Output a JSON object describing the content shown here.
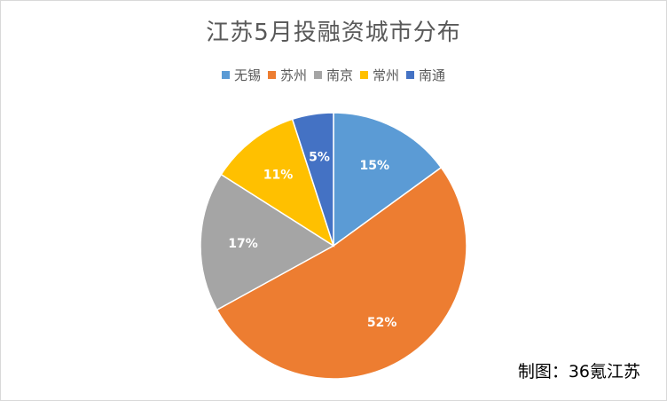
{
  "chart_data": {
    "type": "pie",
    "title": "江苏5月投融资城市分布",
    "categories": [
      "无锡",
      "苏州",
      "南京",
      "常州",
      "南通"
    ],
    "values": [
      15,
      52,
      17,
      11,
      5
    ],
    "labels": [
      "15%",
      "52%",
      "17%",
      "11%",
      "5%"
    ],
    "colors": [
      "#5b9bd5",
      "#ed7d31",
      "#a5a5a5",
      "#ffc000",
      "#4472c4"
    ],
    "legend": "top"
  },
  "credit": "制图：36氪江苏"
}
